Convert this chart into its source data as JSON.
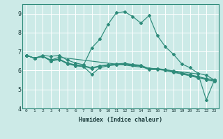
{
  "xlabel": "Humidex (Indice chaleur)",
  "xlim": [
    -0.5,
    23.5
  ],
  "ylim": [
    4.0,
    9.5
  ],
  "yticks": [
    4,
    5,
    6,
    7,
    8,
    9
  ],
  "xticks": [
    0,
    1,
    2,
    3,
    4,
    5,
    6,
    7,
    8,
    9,
    10,
    11,
    12,
    13,
    14,
    15,
    16,
    17,
    18,
    19,
    20,
    21,
    22,
    23
  ],
  "background_color": "#cceae7",
  "grid_color": "#ffffff",
  "line_color": "#2e8b7a",
  "series": [
    {
      "x": [
        0,
        1,
        2,
        3,
        4,
        5,
        6,
        7,
        8,
        9,
        10,
        11,
        12,
        13,
        14,
        15,
        16,
        17,
        18,
        19,
        20,
        21,
        22,
        23
      ],
      "y": [
        6.8,
        6.65,
        6.8,
        6.75,
        6.8,
        6.55,
        6.4,
        6.3,
        7.2,
        7.65,
        8.45,
        9.05,
        9.1,
        8.85,
        8.5,
        8.9,
        7.85,
        7.25,
        6.85,
        6.35,
        6.15,
        5.85,
        5.75,
        5.5
      ]
    },
    {
      "x": [
        0,
        1,
        2,
        3,
        4,
        5,
        6,
        7,
        8,
        9,
        10,
        11,
        12,
        13,
        14,
        15,
        16,
        17,
        18,
        19,
        20,
        21,
        22,
        23
      ],
      "y": [
        6.8,
        6.65,
        6.75,
        6.55,
        6.6,
        6.4,
        6.3,
        6.25,
        6.15,
        6.25,
        6.3,
        6.35,
        6.38,
        6.32,
        6.28,
        6.1,
        6.1,
        6.05,
        5.97,
        5.88,
        5.78,
        5.68,
        5.58,
        5.5
      ]
    },
    {
      "x": [
        0,
        1,
        2,
        3,
        4,
        5,
        6,
        7,
        8,
        9,
        10,
        11,
        12,
        13,
        14,
        15,
        16,
        17,
        18,
        19,
        20,
        21,
        22,
        23
      ],
      "y": [
        6.8,
        6.65,
        6.75,
        6.5,
        6.6,
        6.38,
        6.28,
        6.22,
        6.1,
        6.22,
        6.28,
        6.32,
        6.35,
        6.3,
        6.25,
        6.08,
        6.08,
        6.02,
        5.93,
        5.84,
        5.74,
        5.64,
        5.54,
        5.45
      ]
    },
    {
      "x": [
        0,
        1,
        2,
        3,
        4,
        5,
        6,
        7,
        8,
        9,
        10,
        11,
        12,
        13,
        14,
        15,
        16,
        17,
        18,
        19,
        20,
        21,
        22,
        23
      ],
      "y": [
        6.8,
        6.65,
        6.75,
        6.5,
        6.58,
        6.35,
        6.25,
        6.2,
        5.8,
        6.15,
        6.25,
        6.3,
        6.33,
        6.28,
        6.22,
        6.05,
        6.05,
        6.0,
        5.9,
        5.82,
        5.72,
        5.62,
        5.52,
        5.42
      ]
    },
    {
      "x": [
        0,
        1,
        2,
        3,
        4,
        21,
        22,
        23
      ],
      "y": [
        6.8,
        6.65,
        6.75,
        6.55,
        6.7,
        5.82,
        4.45,
        5.5
      ]
    }
  ]
}
